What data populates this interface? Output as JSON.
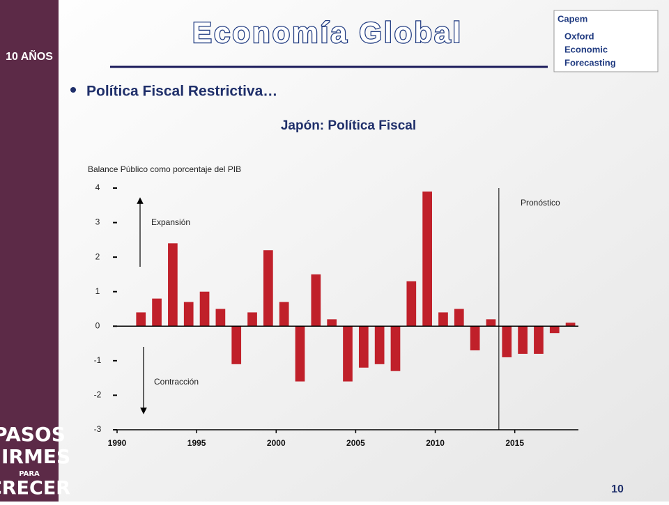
{
  "slide": {
    "title": "Economía Global",
    "bullet": "Política Fiscal Restrictiva…",
    "logo_top": "10 AÑOS",
    "sidebar": [
      "PASOS",
      "FIRMES",
      "PARA",
      "CRECER"
    ],
    "logo_right": [
      "Capem",
      "Oxford",
      "Economic",
      "Forecasting"
    ],
    "page_number": "10"
  },
  "chart_data": {
    "type": "bar",
    "title": "Japón: Política Fiscal",
    "subtitle": "Balance Público como porcentaje del PIB",
    "annotations": {
      "up": "Expansión",
      "down": "Contracción",
      "forecast": "Pronóstico"
    },
    "forecast_start": 2014,
    "x": [
      1991,
      1992,
      1993,
      1994,
      1995,
      1996,
      1997,
      1998,
      1999,
      2000,
      2001,
      2002,
      2003,
      2004,
      2005,
      2006,
      2007,
      2008,
      2009,
      2010,
      2011,
      2012,
      2013,
      2014,
      2015,
      2016,
      2017,
      2018
    ],
    "values": [
      0.4,
      0.8,
      2.4,
      0.7,
      1.0,
      0.5,
      -1.1,
      0.4,
      2.2,
      0.7,
      -1.6,
      1.5,
      0.2,
      -1.6,
      -1.2,
      -1.1,
      -1.3,
      1.3,
      3.9,
      0.4,
      0.5,
      -0.7,
      0.2,
      -0.9,
      -0.8,
      -0.8,
      -0.2,
      0.1
    ],
    "color": "#c0202a",
    "xlim": [
      1990,
      2019
    ],
    "xticks": [
      1990,
      1995,
      2000,
      2005,
      2010,
      2015
    ],
    "ylim": [
      -3,
      4
    ],
    "yticks": [
      -3,
      -2,
      -1,
      0,
      1,
      2,
      3,
      4
    ]
  }
}
